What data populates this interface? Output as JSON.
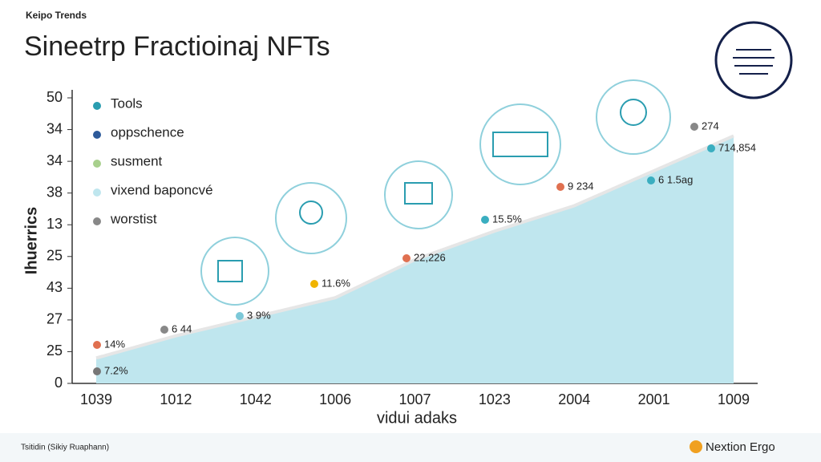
{
  "header": "Keipo Trends",
  "chart_data": {
    "type": "area",
    "title": "Sineetrp Fractioinaj NFTs",
    "ylabel": "Ihuerrics",
    "xlabel": "vidui adaks",
    "categories": [
      "1039",
      "1012",
      "1042",
      "1006",
      "1007",
      "1023",
      "2004",
      "2001",
      "1009"
    ],
    "values": [
      0.8,
      1.5,
      2.1,
      2.7,
      3.9,
      4.8,
      5.6,
      6.7,
      7.8
    ],
    "color": "#bfe6ee",
    "ylim": [
      0,
      9
    ],
    "yticks": [
      0,
      {
        "value": 1,
        "label": "25"
      },
      {
        "value": 2,
        "label": "27"
      },
      {
        "value": 3,
        "label": "43"
      },
      {
        "value": 4,
        "label": "25"
      },
      {
        "value": 5,
        "label": "13"
      },
      {
        "value": 6,
        "label": "38"
      },
      {
        "value": 7,
        "label": "34"
      },
      {
        "value": 8,
        "label": "34"
      },
      {
        "value": 9,
        "label": "50"
      }
    ],
    "legend": [
      {
        "name": "Tools",
        "color": "#2a9db0"
      },
      {
        "name": "oppschence",
        "color": "#2d5a9a"
      },
      {
        "name": "susment",
        "color": "#a8d08d"
      },
      {
        "name": "vixend baponcvé",
        "color": "#bfe6ee"
      },
      {
        "name": "worstist",
        "color": "#888888"
      }
    ],
    "annotations": [
      {
        "text": "7.2%",
        "color": "#777777"
      },
      {
        "text": "14%",
        "color": "#e07050"
      },
      {
        "text": "6 44",
        "color": "#888888"
      },
      {
        "text": "3 9%",
        "color": "#7cc8d8"
      },
      {
        "text": "11.6%",
        "color": "#f0b400"
      },
      {
        "text": "22,226",
        "color": "#e07050"
      },
      {
        "text": "15.5%",
        "color": "#3aaec0"
      },
      {
        "text": "9 234",
        "color": "#e07050"
      },
      {
        "text": "6 1.5ag",
        "color": "#3aaec0"
      },
      {
        "text": "714,854",
        "color": "#3aaec0"
      },
      {
        "text": "274",
        "color": "#888888"
      }
    ]
  },
  "footer": {
    "source": "Tsitidin (Sikiy Ruaphann)",
    "brand": "Nextion Ergo"
  }
}
